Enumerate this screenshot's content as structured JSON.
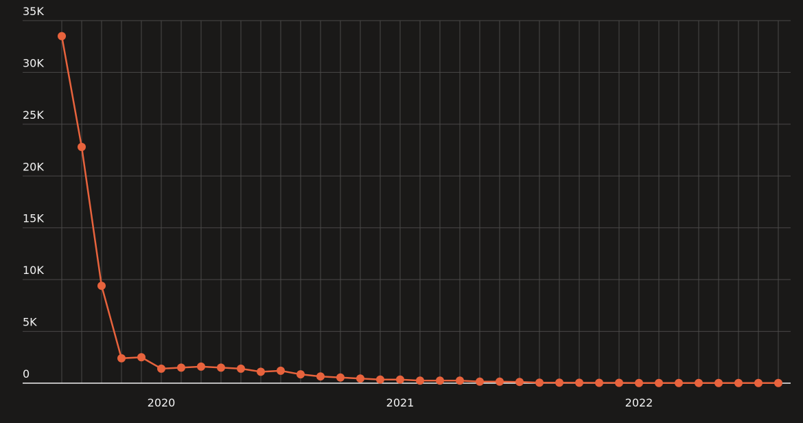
{
  "chart_data": {
    "type": "line",
    "categories": [
      null,
      null,
      null,
      null,
      null,
      "2020",
      null,
      null,
      null,
      null,
      null,
      null,
      null,
      null,
      null,
      null,
      null,
      "2021",
      null,
      null,
      null,
      null,
      null,
      null,
      null,
      null,
      null,
      null,
      null,
      "2022",
      null,
      null,
      null,
      null,
      null,
      null,
      null
    ],
    "series": [
      {
        "color": "#e8633d",
        "values": [
          33500,
          22800,
          9400,
          2400,
          2500,
          1400,
          1500,
          1600,
          1500,
          1400,
          1100,
          1200,
          850,
          650,
          550,
          450,
          350,
          350,
          250,
          250,
          250,
          150,
          150,
          120,
          50,
          50,
          40,
          30,
          30,
          20,
          20,
          20,
          20,
          20,
          20,
          20,
          20
        ]
      }
    ],
    "ylim": [
      0,
      35000
    ],
    "yticks": [
      0,
      {
        "value": 5000,
        "label": "5K"
      },
      {
        "value": 10000,
        "label": "10K"
      },
      {
        "value": 15000,
        "label": "15K"
      },
      {
        "value": 20000,
        "label": "20K"
      },
      {
        "value": 25000,
        "label": "25K"
      },
      {
        "value": 30000,
        "label": "30K"
      },
      {
        "value": 35000,
        "label": "35K"
      }
    ],
    "grid": true
  }
}
